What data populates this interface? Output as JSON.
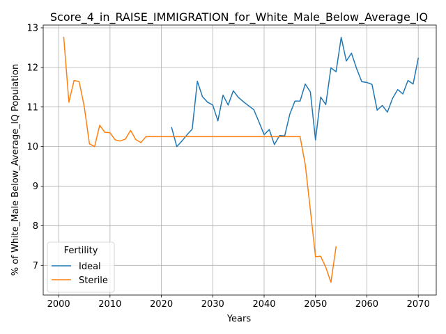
{
  "chart_data": {
    "type": "line",
    "title": "Score_4_in_RAISE_IMMIGRATION_for_White_Male_Below_Average_IQ",
    "xlabel": "Years",
    "ylabel": "% of White_Male Below_Average_IQ Population",
    "xlim": [
      1997,
      2073.5
    ],
    "ylim": [
      6.25,
      13.07
    ],
    "xticks": [
      2000,
      2010,
      2020,
      2030,
      2040,
      2050,
      2060,
      2070
    ],
    "yticks": [
      7,
      8,
      9,
      10,
      11,
      12,
      13
    ],
    "grid": true,
    "legend": {
      "title": "Fertility",
      "placement": "lower-left"
    },
    "series": [
      {
        "name": "Ideal",
        "color": "#1f77b4",
        "x": [
          2022,
          2023,
          2024,
          2025,
          2026,
          2027,
          2028,
          2029,
          2030,
          2031,
          2032,
          2033,
          2034,
          2035,
          2036,
          2037,
          2038,
          2039,
          2040,
          2041,
          2042,
          2043,
          2044,
          2045,
          2046,
          2047,
          2048,
          2049,
          2050,
          2051,
          2052,
          2053,
          2054,
          2055,
          2056,
          2057,
          2058,
          2059,
          2060,
          2061,
          2062,
          2063,
          2064,
          2065,
          2066,
          2067,
          2068,
          2069,
          2070
        ],
        "y": [
          10.48,
          10.0,
          10.14,
          10.3,
          10.44,
          11.65,
          11.26,
          11.12,
          11.05,
          10.65,
          11.3,
          11.05,
          11.41,
          11.24,
          11.13,
          11.03,
          10.93,
          10.62,
          10.3,
          10.43,
          10.05,
          10.28,
          10.27,
          10.82,
          11.15,
          11.15,
          11.58,
          11.38,
          10.17,
          11.25,
          11.06,
          11.99,
          11.89,
          12.76,
          12.16,
          12.36,
          11.97,
          11.64,
          11.62,
          11.57,
          10.92,
          11.04,
          10.87,
          11.22,
          11.44,
          11.33,
          11.67,
          11.58,
          12.23
        ]
      },
      {
        "name": "Sterile",
        "color": "#ff7f0e",
        "x": [
          2001,
          2002,
          2003,
          2004,
          2005,
          2006,
          2007,
          2008,
          2009,
          2010,
          2011,
          2012,
          2013,
          2014,
          2015,
          2016,
          2017,
          2018,
          2019,
          2020,
          2021,
          2022,
          2023,
          2024,
          2025,
          2026,
          2027,
          2028,
          2029,
          2030,
          2031,
          2032,
          2033,
          2034,
          2035,
          2036,
          2037,
          2038,
          2039,
          2040,
          2041,
          2042,
          2043,
          2044,
          2045,
          2046,
          2047,
          2048,
          2049,
          2050,
          2051,
          2052,
          2053,
          2054
        ],
        "y": [
          12.76,
          11.12,
          11.67,
          11.64,
          11.0,
          10.07,
          10.0,
          10.54,
          10.36,
          10.35,
          10.17,
          10.14,
          10.19,
          10.41,
          10.18,
          10.1,
          10.25,
          10.25,
          10.25,
          10.25,
          10.25,
          10.25,
          10.25,
          10.25,
          10.25,
          10.25,
          10.25,
          10.25,
          10.25,
          10.25,
          10.25,
          10.25,
          10.25,
          10.25,
          10.25,
          10.25,
          10.25,
          10.25,
          10.25,
          10.25,
          10.25,
          10.25,
          10.25,
          10.25,
          10.25,
          10.25,
          10.25,
          9.55,
          8.4,
          7.22,
          7.23,
          6.95,
          6.57,
          7.47
        ]
      }
    ]
  }
}
